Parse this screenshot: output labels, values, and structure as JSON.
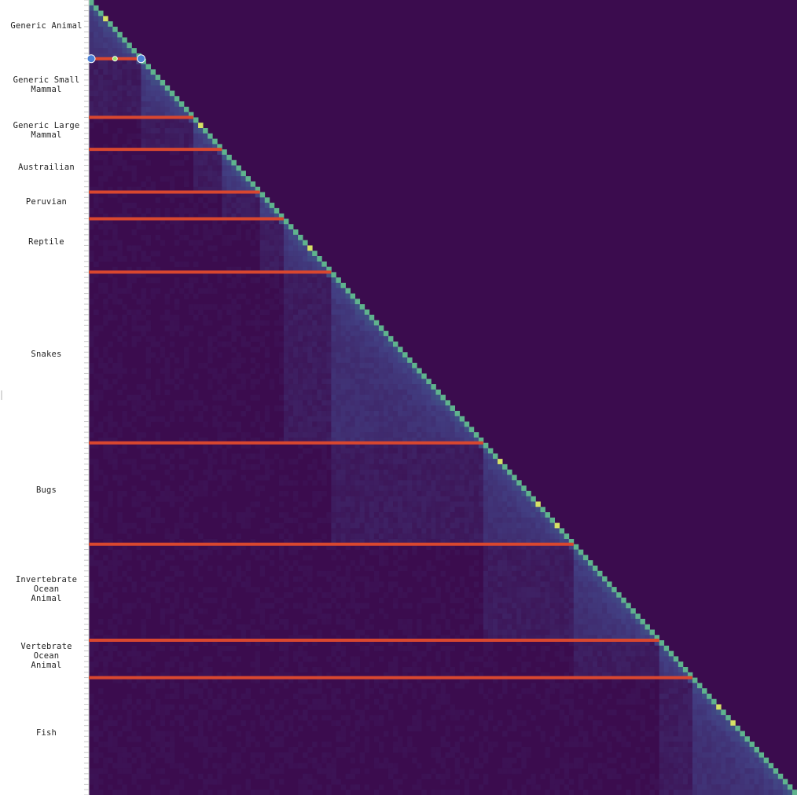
{
  "chart_data": {
    "type": "heatmap",
    "title": "",
    "xlabel": "",
    "ylabel": "",
    "lower_triangular": true,
    "n_items": 149,
    "colormap": "viridis",
    "grid": false,
    "colors": {
      "background": "#3b0c4e",
      "diagonal": "#5fb38e",
      "diagonal_bright": "#d6e266",
      "boundary_line": "#d9472f",
      "handle": "#4a7fd4",
      "handle_mid": "#9be56a"
    },
    "groups": [
      {
        "label": "Generic Animal",
        "start": 0,
        "end": 11
      },
      {
        "label": "Generic Small\nMammal",
        "start": 11,
        "end": 22
      },
      {
        "label": "Generic Large\nMammal",
        "start": 22,
        "end": 28
      },
      {
        "label": "Austrailian",
        "start": 28,
        "end": 36
      },
      {
        "label": "Peruvian",
        "start": 36,
        "end": 41
      },
      {
        "label": "Reptile",
        "start": 41,
        "end": 51
      },
      {
        "label": "Snakes",
        "start": 51,
        "end": 83
      },
      {
        "label": "Bugs",
        "start": 83,
        "end": 102
      },
      {
        "label": "Invertebrate\nOcean\nAnimal",
        "start": 102,
        "end": 120
      },
      {
        "label": "Vertebrate\nOcean\nAnimal",
        "start": 120,
        "end": 127
      },
      {
        "label": "Fish",
        "start": 127,
        "end": 149
      }
    ],
    "bright_diagonal_items": [
      3,
      23,
      46,
      86,
      94,
      98,
      132,
      135
    ],
    "boundary_lines_at": [
      11,
      22,
      28,
      36,
      41,
      51,
      83,
      102,
      120,
      127
    ],
    "selected_boundary": 11
  }
}
